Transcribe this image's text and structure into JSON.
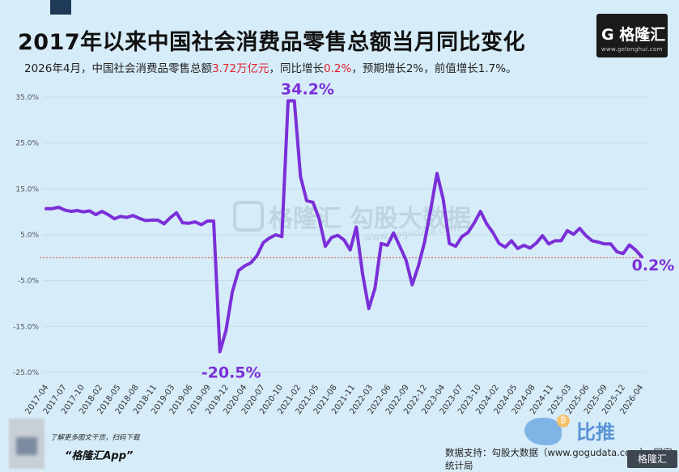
{
  "title": "2017年以来中国社会消费品零售总额当月同比变化",
  "subtitle": {
    "part1": "2026年4月，中国社会消费品零售总额",
    "value1": "3.72万亿元",
    "part2": "，同比增长",
    "value2": "0.2%",
    "part3": "，预期增长2%，前值增长1.7%。"
  },
  "brand": {
    "logo_text": "G 格隆汇",
    "logo_url": "www.gelonghui.com",
    "watermark_main": "格隆汇",
    "watermark_secondary": "勾股大数据",
    "watermark_url": "www.gogudata.com",
    "corner_logo": "格隆汇",
    "bitui": "比推"
  },
  "footer": {
    "left_line1": "了解更多图文干货，扫码下载",
    "left_line2": "“格隆汇App”",
    "right": "数据支持：勾股大数据（www.gogudata.com）、国家统计局"
  },
  "colors": {
    "line": "#7b2fd8",
    "annotation": "#7b2fd8",
    "reference_line": "#d9534f",
    "highlight_red": "#e01f2b"
  },
  "chart_data": {
    "type": "line",
    "ylim": [
      -25,
      35
    ],
    "yticks": [
      "35.0%",
      "25.0%",
      "15.0%",
      "5.0%",
      "-5.0%",
      "-15.0%",
      "-25.0%"
    ],
    "ytick_values": [
      35,
      25,
      15,
      5,
      -5,
      -15,
      -25
    ],
    "xtick_labels": [
      "2017-04",
      "2017-07",
      "2017-10",
      "2018-02",
      "2018-05",
      "2018-08",
      "2018-11",
      "2019-03",
      "2019-06",
      "2019-09",
      "2019-12",
      "2020-04",
      "2020-07",
      "2020-10",
      "2021-02",
      "2021-05",
      "2021-08",
      "2021-11",
      "2022-03",
      "2022-06",
      "2022-09",
      "2022-12",
      "2023-04",
      "2023-07",
      "2023-10",
      "2024-02",
      "2024-05",
      "2024-08",
      "2024-11",
      "2025-03",
      "2025-06",
      "2025-09",
      "2025-12",
      "2026-04"
    ],
    "series": [
      {
        "values": [
          10.7,
          10.7,
          11.0,
          10.4,
          10.1,
          10.3,
          10.0,
          10.2,
          9.4,
          10.1,
          9.4,
          8.5,
          9.0,
          8.8,
          9.2,
          8.6,
          8.1,
          8.2,
          8.2,
          7.4,
          8.7,
          9.8,
          7.6,
          7.5,
          7.8,
          7.2,
          8.0,
          8.0,
          -20.5,
          -15.8,
          -7.5,
          -2.8,
          -1.8,
          -1.1,
          0.5,
          3.3,
          4.3,
          5.0,
          4.6,
          34.2,
          34.2,
          17.7,
          12.4,
          12.1,
          8.5,
          2.5,
          4.4,
          4.9,
          3.9,
          1.7,
          6.7,
          -3.5,
          -11.1,
          -6.7,
          3.1,
          2.7,
          5.4,
          2.5,
          -0.5,
          -5.9,
          -1.8,
          3.5,
          10.6,
          18.4,
          12.7,
          3.1,
          2.5,
          4.6,
          5.5,
          7.6,
          10.1,
          7.4,
          5.5,
          3.1,
          2.3,
          3.7,
          2.0,
          2.7,
          2.1,
          3.2,
          4.8,
          3.0,
          3.7,
          3.7,
          5.9,
          5.1,
          6.4,
          4.8,
          3.7,
          3.4,
          3.0,
          3.0,
          1.3,
          0.9,
          2.8,
          1.7,
          0.2
        ]
      }
    ],
    "annotations": [
      {
        "label": "34.2%",
        "index": 39,
        "value": 34.2
      },
      {
        "label": "-20.5%",
        "index": 28,
        "value": -20.5
      },
      {
        "label": "0.2%",
        "index": 96,
        "value": 0.2
      }
    ],
    "reference_line": 0
  }
}
